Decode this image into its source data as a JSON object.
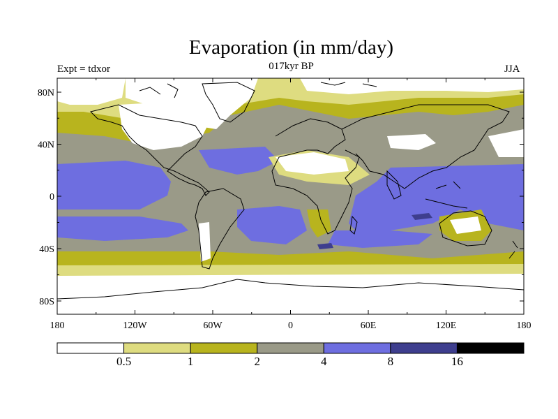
{
  "title": "Evaporation (in mm/day)",
  "subtitle_left": "Expt = tdxor",
  "subtitle_center": "017kyr BP",
  "subtitle_right": "JJA",
  "lat_ticks": [
    {
      "value": 80,
      "label": "80N"
    },
    {
      "value": 40,
      "label": "40N"
    },
    {
      "value": 0,
      "label": "0"
    },
    {
      "value": -40,
      "label": "40S"
    },
    {
      "value": -80,
      "label": "80S"
    }
  ],
  "lon_ticks": [
    {
      "value": -180,
      "label": "180"
    },
    {
      "value": -120,
      "label": "120W"
    },
    {
      "value": -60,
      "label": "60W"
    },
    {
      "value": 0,
      "label": "0"
    },
    {
      "value": 60,
      "label": "60E"
    },
    {
      "value": 120,
      "label": "120E"
    },
    {
      "value": 180,
      "label": "180"
    }
  ],
  "colorbar": {
    "levels": [
      "0.5",
      "1",
      "2",
      "4",
      "8",
      "16"
    ],
    "colors": [
      "#ffffff",
      "#dedc80",
      "#b8b41e",
      "#9a9a88",
      "#6e6ee0",
      "#3e3e8e",
      "#000000"
    ]
  },
  "colors": {
    "ice": "#ffffff",
    "very_low": "#dedc80",
    "low": "#b8b41e",
    "mid": "#9a9a88",
    "high": "#6e6ee0",
    "very_high": "#3e3e8e",
    "coast": "#000000"
  }
}
